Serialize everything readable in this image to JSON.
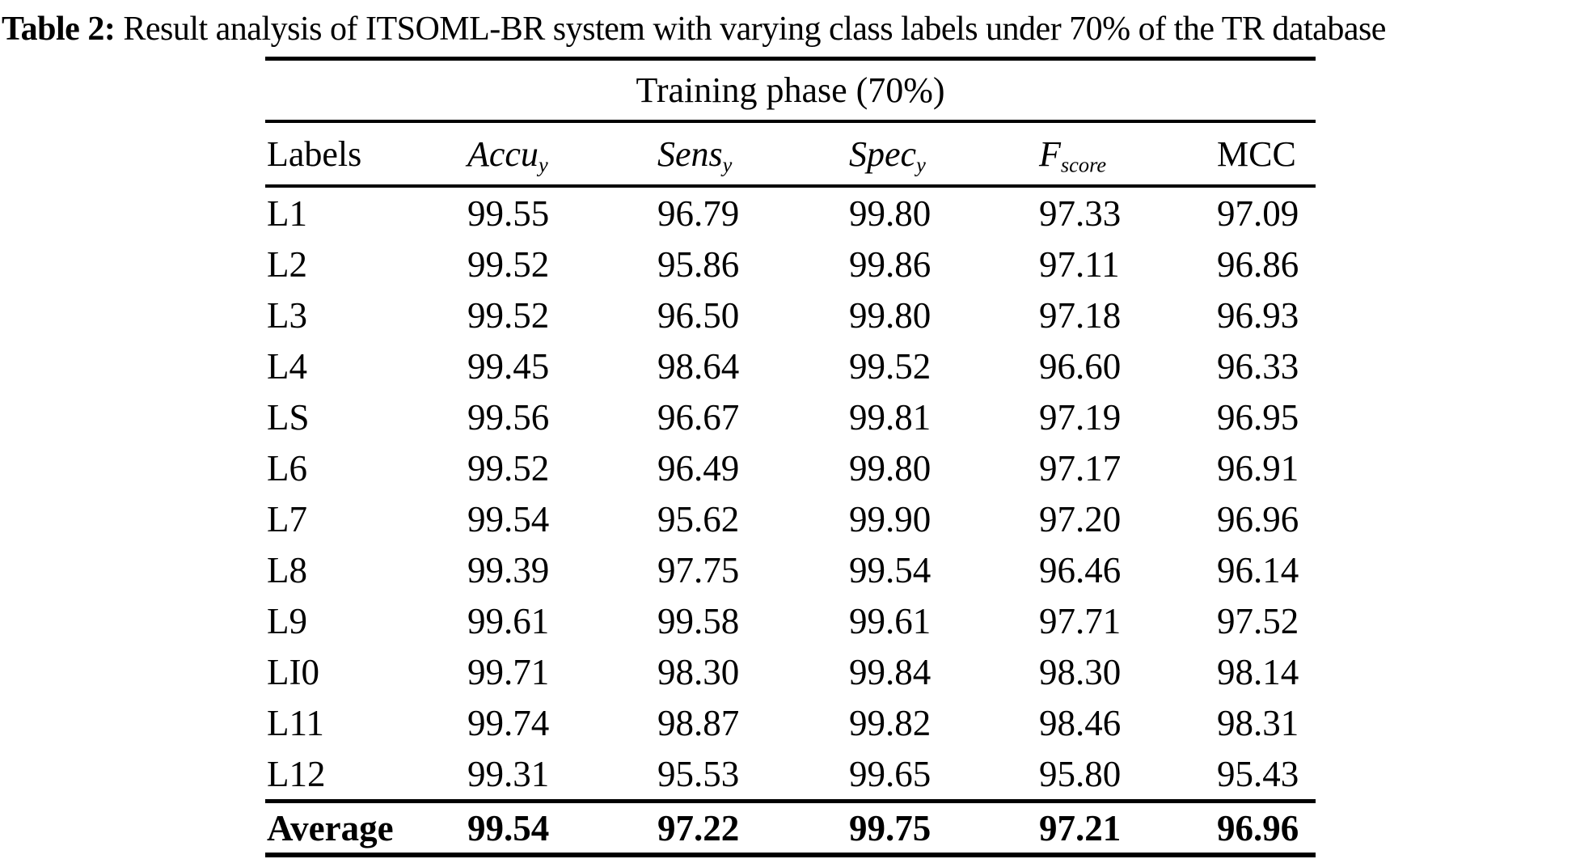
{
  "title": {
    "prefix": "Table 2:",
    "text": " Result analysis of ITSOML-BR system with varying class labels under 70% of the TR database"
  },
  "table": {
    "group_header": "Training phase (70%)",
    "columns": [
      {
        "base": "Labels",
        "sub": "",
        "italic": false
      },
      {
        "base": "Accu",
        "sub": "y",
        "italic": true
      },
      {
        "base": "Sens",
        "sub": "y",
        "italic": true
      },
      {
        "base": "Spec",
        "sub": "y",
        "italic": true
      },
      {
        "base": "F",
        "sub": "score",
        "italic": true
      },
      {
        "base": "MCC",
        "sub": "",
        "italic": false
      }
    ],
    "rows": [
      {
        "label": "L1",
        "values": [
          "99.55",
          "96.79",
          "99.80",
          "97.33",
          "97.09"
        ]
      },
      {
        "label": "L2",
        "values": [
          "99.52",
          "95.86",
          "99.86",
          "97.11",
          "96.86"
        ]
      },
      {
        "label": "L3",
        "values": [
          "99.52",
          "96.50",
          "99.80",
          "97.18",
          "96.93"
        ]
      },
      {
        "label": "L4",
        "values": [
          "99.45",
          "98.64",
          "99.52",
          "96.60",
          "96.33"
        ]
      },
      {
        "label": "LS",
        "values": [
          "99.56",
          "96.67",
          "99.81",
          "97.19",
          "96.95"
        ]
      },
      {
        "label": "L6",
        "values": [
          "99.52",
          "96.49",
          "99.80",
          "97.17",
          "96.91"
        ]
      },
      {
        "label": "L7",
        "values": [
          "99.54",
          "95.62",
          "99.90",
          "97.20",
          "96.96"
        ]
      },
      {
        "label": "L8",
        "values": [
          "99.39",
          "97.75",
          "99.54",
          "96.46",
          "96.14"
        ]
      },
      {
        "label": "L9",
        "values": [
          "99.61",
          "99.58",
          "99.61",
          "97.71",
          "97.52"
        ]
      },
      {
        "label": "LI0",
        "values": [
          "99.71",
          "98.30",
          "99.84",
          "98.30",
          "98.14"
        ]
      },
      {
        "label": "L11",
        "values": [
          "99.74",
          "98.87",
          "99.82",
          "98.46",
          "98.31"
        ]
      },
      {
        "label": "L12",
        "values": [
          "99.31",
          "95.53",
          "99.65",
          "95.80",
          "95.43"
        ]
      }
    ],
    "footer": {
      "label": "Average",
      "values": [
        "99.54",
        "97.22",
        "99.75",
        "97.21",
        "96.96"
      ]
    }
  },
  "colors": {
    "text": "#000000",
    "background": "#ffffff",
    "rule": "#000000"
  }
}
